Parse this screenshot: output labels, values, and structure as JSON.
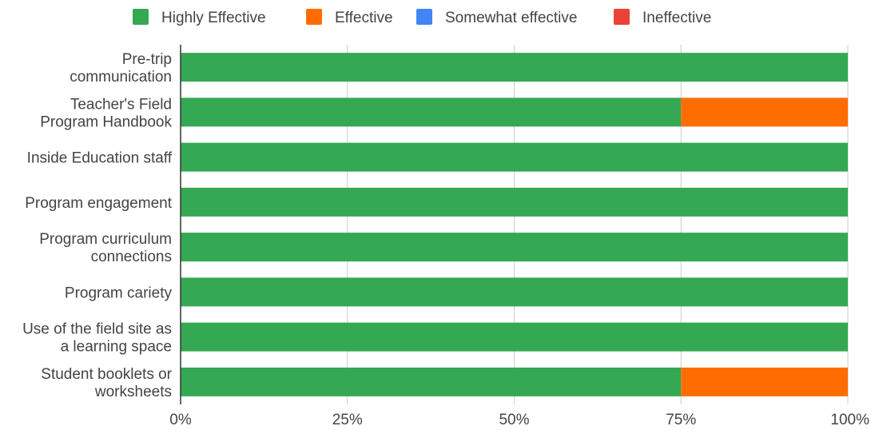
{
  "chart_data": {
    "type": "bar",
    "orientation": "horizontal",
    "stacked": "percent",
    "categories": [
      [
        "Pre-trip",
        "communication"
      ],
      [
        "Teacher's Field",
        "Program Handbook"
      ],
      [
        "Inside Education staff"
      ],
      [
        "Program engagement"
      ],
      [
        "Program curriculum",
        "connections"
      ],
      [
        "Program cariety"
      ],
      [
        "Use of the field site as",
        "a learning space"
      ],
      [
        "Student booklets or",
        "worksheets"
      ]
    ],
    "series": [
      {
        "name": "Highly Effective",
        "color": "#34a853",
        "values": [
          100,
          75,
          100,
          100,
          100,
          100,
          100,
          75
        ]
      },
      {
        "name": "Effective",
        "color": "#ff6d01",
        "values": [
          0,
          25,
          0,
          0,
          0,
          0,
          0,
          25
        ]
      },
      {
        "name": "Somewhat effective",
        "color": "#4285f4",
        "values": [
          0,
          0,
          0,
          0,
          0,
          0,
          0,
          0
        ]
      },
      {
        "name": "Ineffective",
        "color": "#ea4335",
        "values": [
          0,
          0,
          0,
          0,
          0,
          0,
          0,
          0
        ]
      }
    ],
    "x_ticks": [
      "0%",
      "25%",
      "50%",
      "75%",
      "100%"
    ],
    "xlim": [
      0,
      100
    ],
    "grid": true,
    "legend_position": "top",
    "title": "",
    "xlabel": "",
    "ylabel": ""
  }
}
